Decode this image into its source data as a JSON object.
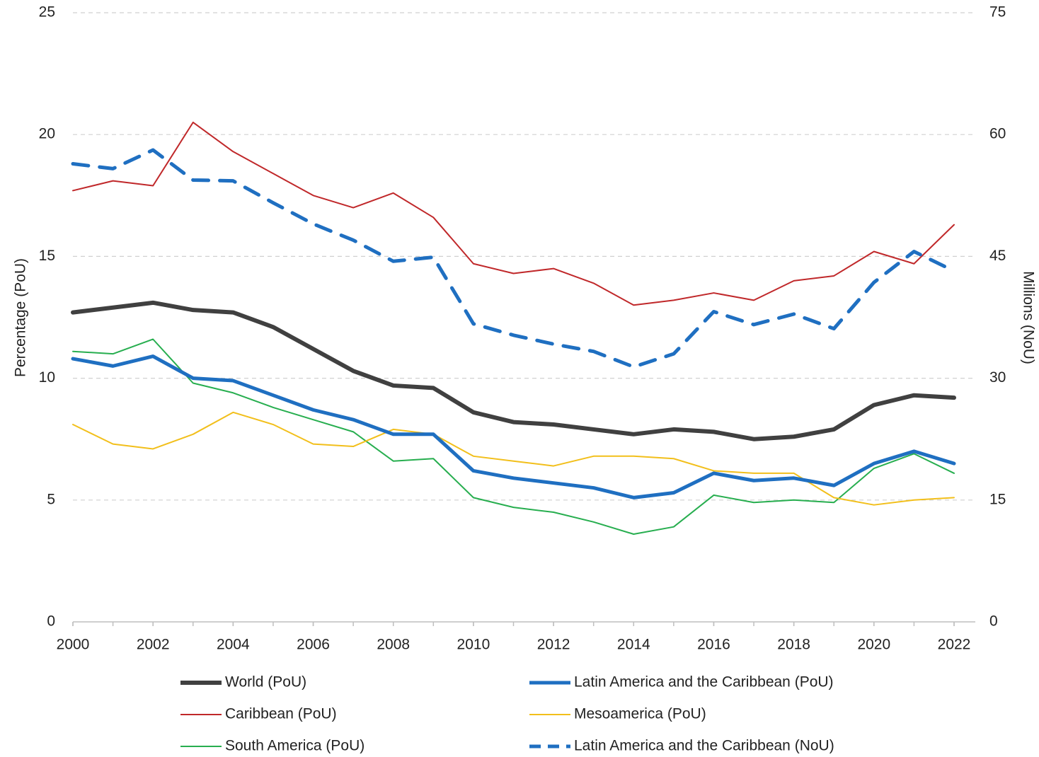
{
  "chart_data": {
    "type": "line",
    "y_label": "Percentage (PoU)",
    "y2_label": "Millions (NoU)",
    "x": [
      2000,
      2001,
      2002,
      2003,
      2004,
      2005,
      2006,
      2007,
      2008,
      2009,
      2010,
      2011,
      2012,
      2013,
      2014,
      2015,
      2016,
      2017,
      2018,
      2019,
      2020,
      2021,
      2022
    ],
    "xlim": [
      2000,
      2022
    ],
    "xticks": [
      2000,
      2002,
      2004,
      2006,
      2008,
      2010,
      2012,
      2014,
      2016,
      2018,
      2020,
      2022
    ],
    "ylim": [
      0,
      25
    ],
    "yticks": [
      0,
      5,
      10,
      15,
      20,
      25
    ],
    "y2lim": [
      0,
      75
    ],
    "y2ticks": [
      0,
      15,
      30,
      45,
      60,
      75
    ],
    "grid": true,
    "legend": "bottom",
    "series": [
      {
        "name": "World (PoU)",
        "color": "#404040",
        "values": [
          12.7,
          12.9,
          13.1,
          12.8,
          12.7,
          12.1,
          11.2,
          10.3,
          9.7,
          9.6,
          8.6,
          8.2,
          8.1,
          7.9,
          7.7,
          7.9,
          7.8,
          7.5,
          7.6,
          7.9,
          8.9,
          9.3,
          9.2
        ]
      },
      {
        "name": "Latin America and the Caribbean (PoU)",
        "color": "#1f6fc1",
        "values": [
          10.8,
          10.5,
          10.9,
          10.0,
          9.9,
          9.3,
          8.7,
          8.3,
          7.7,
          7.7,
          6.2,
          5.9,
          5.7,
          5.5,
          5.1,
          5.3,
          6.1,
          5.8,
          5.9,
          5.6,
          6.5,
          7.0,
          6.5
        ]
      },
      {
        "name": "Caribbean (PoU)",
        "color": "#c0282a",
        "values": [
          17.7,
          18.1,
          17.9,
          20.5,
          19.3,
          18.4,
          17.5,
          17.0,
          17.6,
          16.6,
          14.7,
          14.3,
          14.5,
          13.9,
          13.0,
          13.2,
          13.5,
          13.2,
          14.0,
          14.2,
          15.2,
          14.7,
          16.3
        ]
      },
      {
        "name": "Mesoamerica (PoU)",
        "color": "#f2bf1b",
        "values": [
          8.1,
          7.3,
          7.1,
          7.7,
          8.6,
          8.1,
          7.3,
          7.2,
          7.9,
          7.7,
          6.8,
          6.6,
          6.4,
          6.8,
          6.8,
          6.7,
          6.2,
          6.1,
          6.1,
          5.1,
          4.8,
          5.0,
          5.1
        ]
      },
      {
        "name": "South America (PoU)",
        "color": "#27ae4f",
        "values": [
          11.1,
          11.0,
          11.6,
          9.8,
          9.4,
          8.8,
          8.3,
          7.8,
          6.6,
          6.7,
          5.1,
          4.7,
          4.5,
          4.1,
          3.6,
          3.9,
          5.2,
          4.9,
          5.0,
          4.9,
          6.3,
          6.9,
          6.1
        ]
      },
      {
        "name": "Latin America and the Caribbean (NoU)",
        "color": "#1f6fc1",
        "dashed": true,
        "axis": "y2",
        "values": [
          56.4,
          55.8,
          58.1,
          54.4,
          54.3,
          51.6,
          49.0,
          47.0,
          44.4,
          44.9,
          36.7,
          35.3,
          34.2,
          33.3,
          31.4,
          33.0,
          38.2,
          36.6,
          37.9,
          36.1,
          41.8,
          45.6,
          43.2
        ]
      }
    ]
  }
}
